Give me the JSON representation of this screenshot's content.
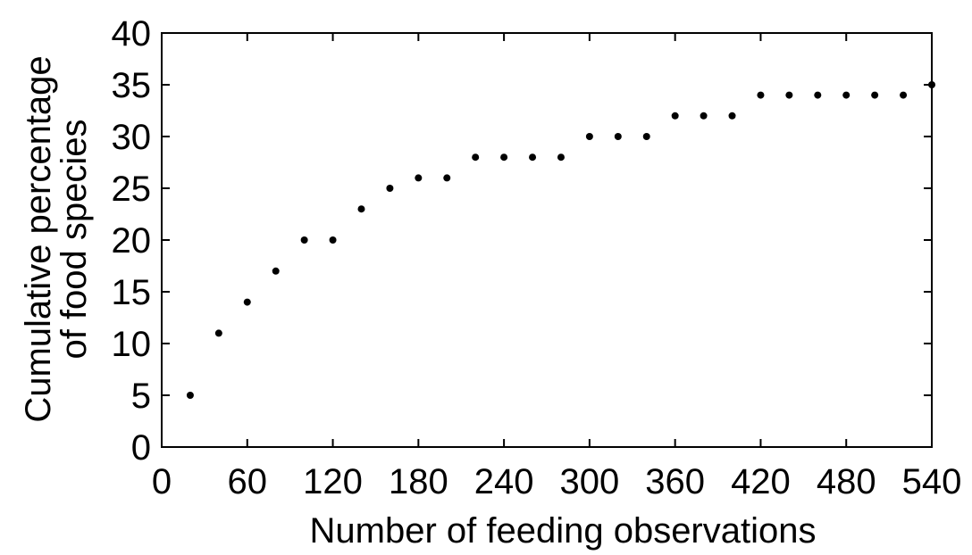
{
  "chart_data": {
    "type": "scatter",
    "title": "",
    "xlabel": "Number of feeding observations",
    "ylabel_lines": [
      "Cumulative percentage",
      "of food species"
    ],
    "xlim": [
      0,
      540
    ],
    "ylim": [
      0,
      40
    ],
    "x_ticks": [
      0,
      60,
      120,
      180,
      240,
      300,
      360,
      420,
      480,
      540
    ],
    "y_ticks": [
      0,
      5,
      10,
      15,
      20,
      25,
      30,
      35,
      40
    ],
    "x_tick_labels": [
      "0",
      "60",
      "120",
      "180",
      "240",
      "300",
      "360",
      "420",
      "480",
      "540"
    ],
    "y_tick_labels": [
      "0",
      "5",
      "10",
      "15",
      "20",
      "25",
      "30",
      "35",
      "40"
    ],
    "grid": false,
    "legend": "none",
    "marker_color": "#000000",
    "series": [
      {
        "x": [
          20,
          40,
          60,
          80,
          100,
          120,
          140,
          160,
          180,
          200,
          220,
          240,
          260,
          280,
          300,
          320,
          340,
          360,
          380,
          400,
          420,
          440,
          460,
          480,
          500,
          520,
          540
        ],
        "y": [
          5,
          11,
          14,
          17,
          20,
          20,
          23,
          25,
          26,
          26,
          28,
          28,
          28,
          28,
          30,
          30,
          30,
          32,
          32,
          32,
          34,
          34,
          34,
          34,
          34,
          34,
          35
        ]
      }
    ]
  }
}
